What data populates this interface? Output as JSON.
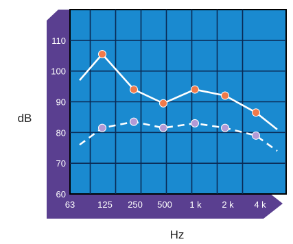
{
  "chart_data": {
    "type": "line",
    "title": "",
    "xlabel": "Hz",
    "ylabel": "dB",
    "categories": [
      "63",
      "125",
      "250",
      "500",
      "1 k",
      "2 k",
      "4 k"
    ],
    "ylim": [
      60,
      120
    ],
    "yticks": [
      60,
      70,
      80,
      90,
      100,
      110
    ],
    "grid": true,
    "series": [
      {
        "style": "solid",
        "values": [
          97,
          105.5,
          94,
          89.5,
          94,
          92,
          86.5
        ],
        "markers": [
          false,
          true,
          true,
          true,
          true,
          true,
          true
        ],
        "end_value": 81,
        "color": "#ffffff",
        "marker_color": "#f07a4a"
      },
      {
        "style": "dashed",
        "values": [
          76,
          81.5,
          83.5,
          81.5,
          83,
          81.5,
          79
        ],
        "markers": [
          false,
          true,
          true,
          true,
          true,
          true,
          true
        ],
        "end_value": 74,
        "color": "#ffffff",
        "marker_color": "#b39ad6"
      }
    ],
    "colors": {
      "plot_background": "#1a8ad0",
      "frame": "#5a3f90",
      "gridline": "#0a2a55",
      "border": "#000000"
    }
  }
}
